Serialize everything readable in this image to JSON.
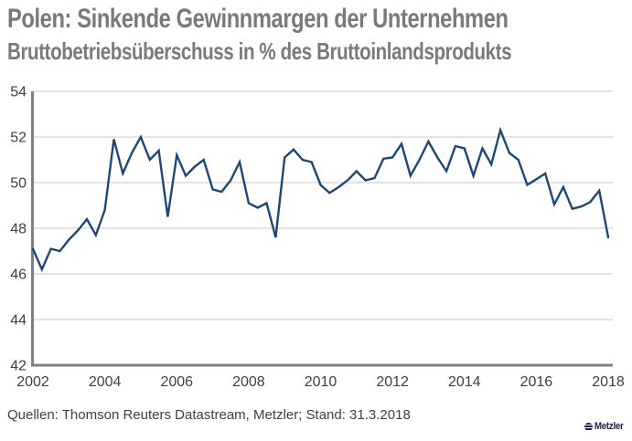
{
  "header": {
    "title": "Polen: Sinkende Gewinnmargen der Unternehmen",
    "subtitle": "Bruttobetriebsüberschuss in % des Bruttoinlandsprodukts"
  },
  "source_line": "Quellen: Thomson Reuters Datastream, Metzler; Stand: 31.3.2018",
  "logo": {
    "text": "Metzler"
  },
  "colors": {
    "line": "#1d4876",
    "grid": "#c7c7c7",
    "axis": "#7f7f7f",
    "title": "#7a7a7a",
    "text": "#3f3f3f",
    "tick_text": "#404040",
    "logo": "#1c1c4e"
  },
  "chart_data": {
    "type": "line",
    "title": "Polen: Sinkende Gewinnmargen der Unternehmen",
    "subtitle": "Bruttobetriebsüberschuss in % des Bruttoinlandsprodukts",
    "frequency": "quarterly",
    "x_start": "2002-Q1",
    "x_end": "2018-Q1",
    "x_tick_labels": [
      "2002",
      "2004",
      "2006",
      "2008",
      "2010",
      "2012",
      "2014",
      "2016",
      "2018"
    ],
    "y_ticks": [
      42,
      44,
      46,
      48,
      50,
      52,
      54
    ],
    "ylim": [
      42,
      54
    ],
    "grid": "horizontal",
    "legend": "none",
    "series": [
      {
        "name": "Bruttobetriebsüberschuss in % des Bruttoinlandsprodukts",
        "color": "#1d4876",
        "values": [
          47.1,
          46.2,
          47.1,
          47.0,
          47.5,
          47.9,
          48.4,
          47.7,
          48.8,
          51.9,
          50.4,
          51.3,
          52.0,
          51.0,
          51.4,
          48.5,
          51.2,
          50.3,
          50.7,
          51.0,
          49.7,
          49.6,
          50.1,
          50.9,
          49.1,
          48.9,
          49.1,
          47.6,
          51.1,
          51.45,
          51.0,
          50.9,
          49.9,
          49.55,
          49.8,
          50.1,
          50.5,
          50.1,
          50.2,
          51.05,
          51.1,
          51.7,
          50.3,
          51.0,
          51.8,
          51.1,
          50.5,
          51.6,
          51.5,
          50.3,
          51.5,
          50.8,
          52.3,
          51.3,
          51.0,
          49.9,
          50.15,
          50.4,
          49.05,
          49.8,
          48.85,
          48.95,
          49.15,
          49.65,
          47.6
        ]
      }
    ]
  }
}
